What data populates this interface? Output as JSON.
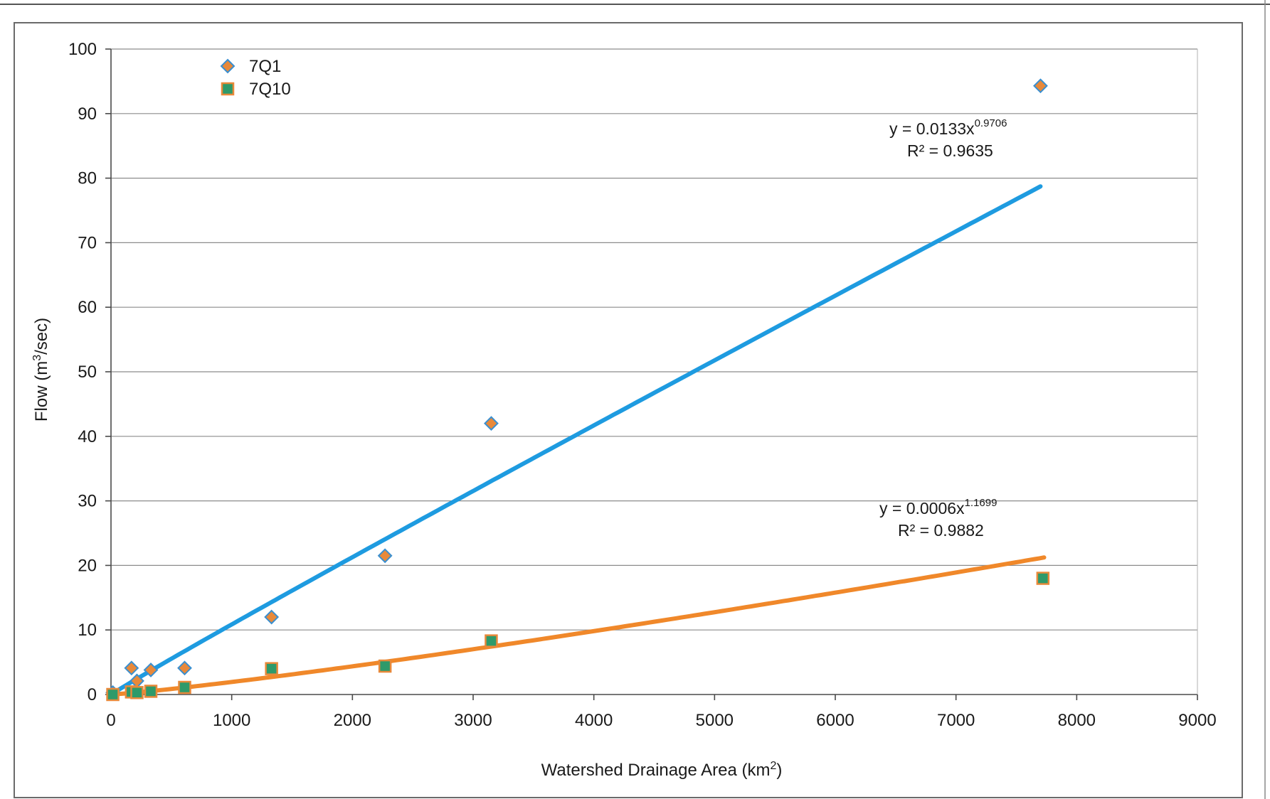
{
  "chart_data": {
    "type": "scatter",
    "xlabel_prefix": "Watershed Drainage Area (km",
    "xlabel_sup": "2",
    "xlabel_suffix": ")",
    "ylabel_prefix": "Flow (m",
    "ylabel_sup": "3",
    "ylabel_suffix": "/sec)",
    "xlim": [
      0,
      9000
    ],
    "ylim": [
      0,
      100
    ],
    "x_ticks": [
      0,
      1000,
      2000,
      3000,
      4000,
      5000,
      6000,
      7000,
      8000,
      9000
    ],
    "y_ticks": [
      0,
      10,
      20,
      30,
      40,
      50,
      60,
      70,
      80,
      90,
      100
    ],
    "grid": true,
    "legend_position": "top-left",
    "series": [
      {
        "name": "7Q1",
        "marker": "diamond",
        "fill": "#e8893a",
        "stroke": "#3a8fd0",
        "points": [
          [
            15,
            0.3
          ],
          [
            170,
            4.1
          ],
          [
            215,
            2.1
          ],
          [
            330,
            3.8
          ],
          [
            610,
            4.1
          ],
          [
            1330,
            12
          ],
          [
            2270,
            21.5
          ],
          [
            3150,
            42
          ],
          [
            7700,
            94.3
          ]
        ]
      },
      {
        "name": "7Q10",
        "marker": "square",
        "fill": "#2e9a6a",
        "stroke": "#e8893a",
        "points": [
          [
            15,
            0
          ],
          [
            170,
            0.4
          ],
          [
            215,
            0.3
          ],
          [
            330,
            0.5
          ],
          [
            610,
            1.1
          ],
          [
            1330,
            4
          ],
          [
            2270,
            4.4
          ],
          [
            3150,
            8.3
          ],
          [
            7720,
            18
          ]
        ]
      }
    ],
    "trendlines": [
      {
        "series": "7Q1",
        "type": "power",
        "a": 0.0133,
        "b": 0.9706,
        "x_range": [
          15,
          7700
        ],
        "color": "#1e9be0",
        "equation_base": "y = 0.0133x",
        "equation_exp": "0.9706",
        "r2": "R² = 0.9635"
      },
      {
        "series": "7Q10",
        "type": "power",
        "a": 0.0006,
        "b": 1.1699,
        "x_range": [
          15,
          7730
        ],
        "color": "#f0882a",
        "equation_base": "y = 0.0006x",
        "equation_exp": "1.1699",
        "r2": "R² = 0.9882"
      }
    ]
  }
}
